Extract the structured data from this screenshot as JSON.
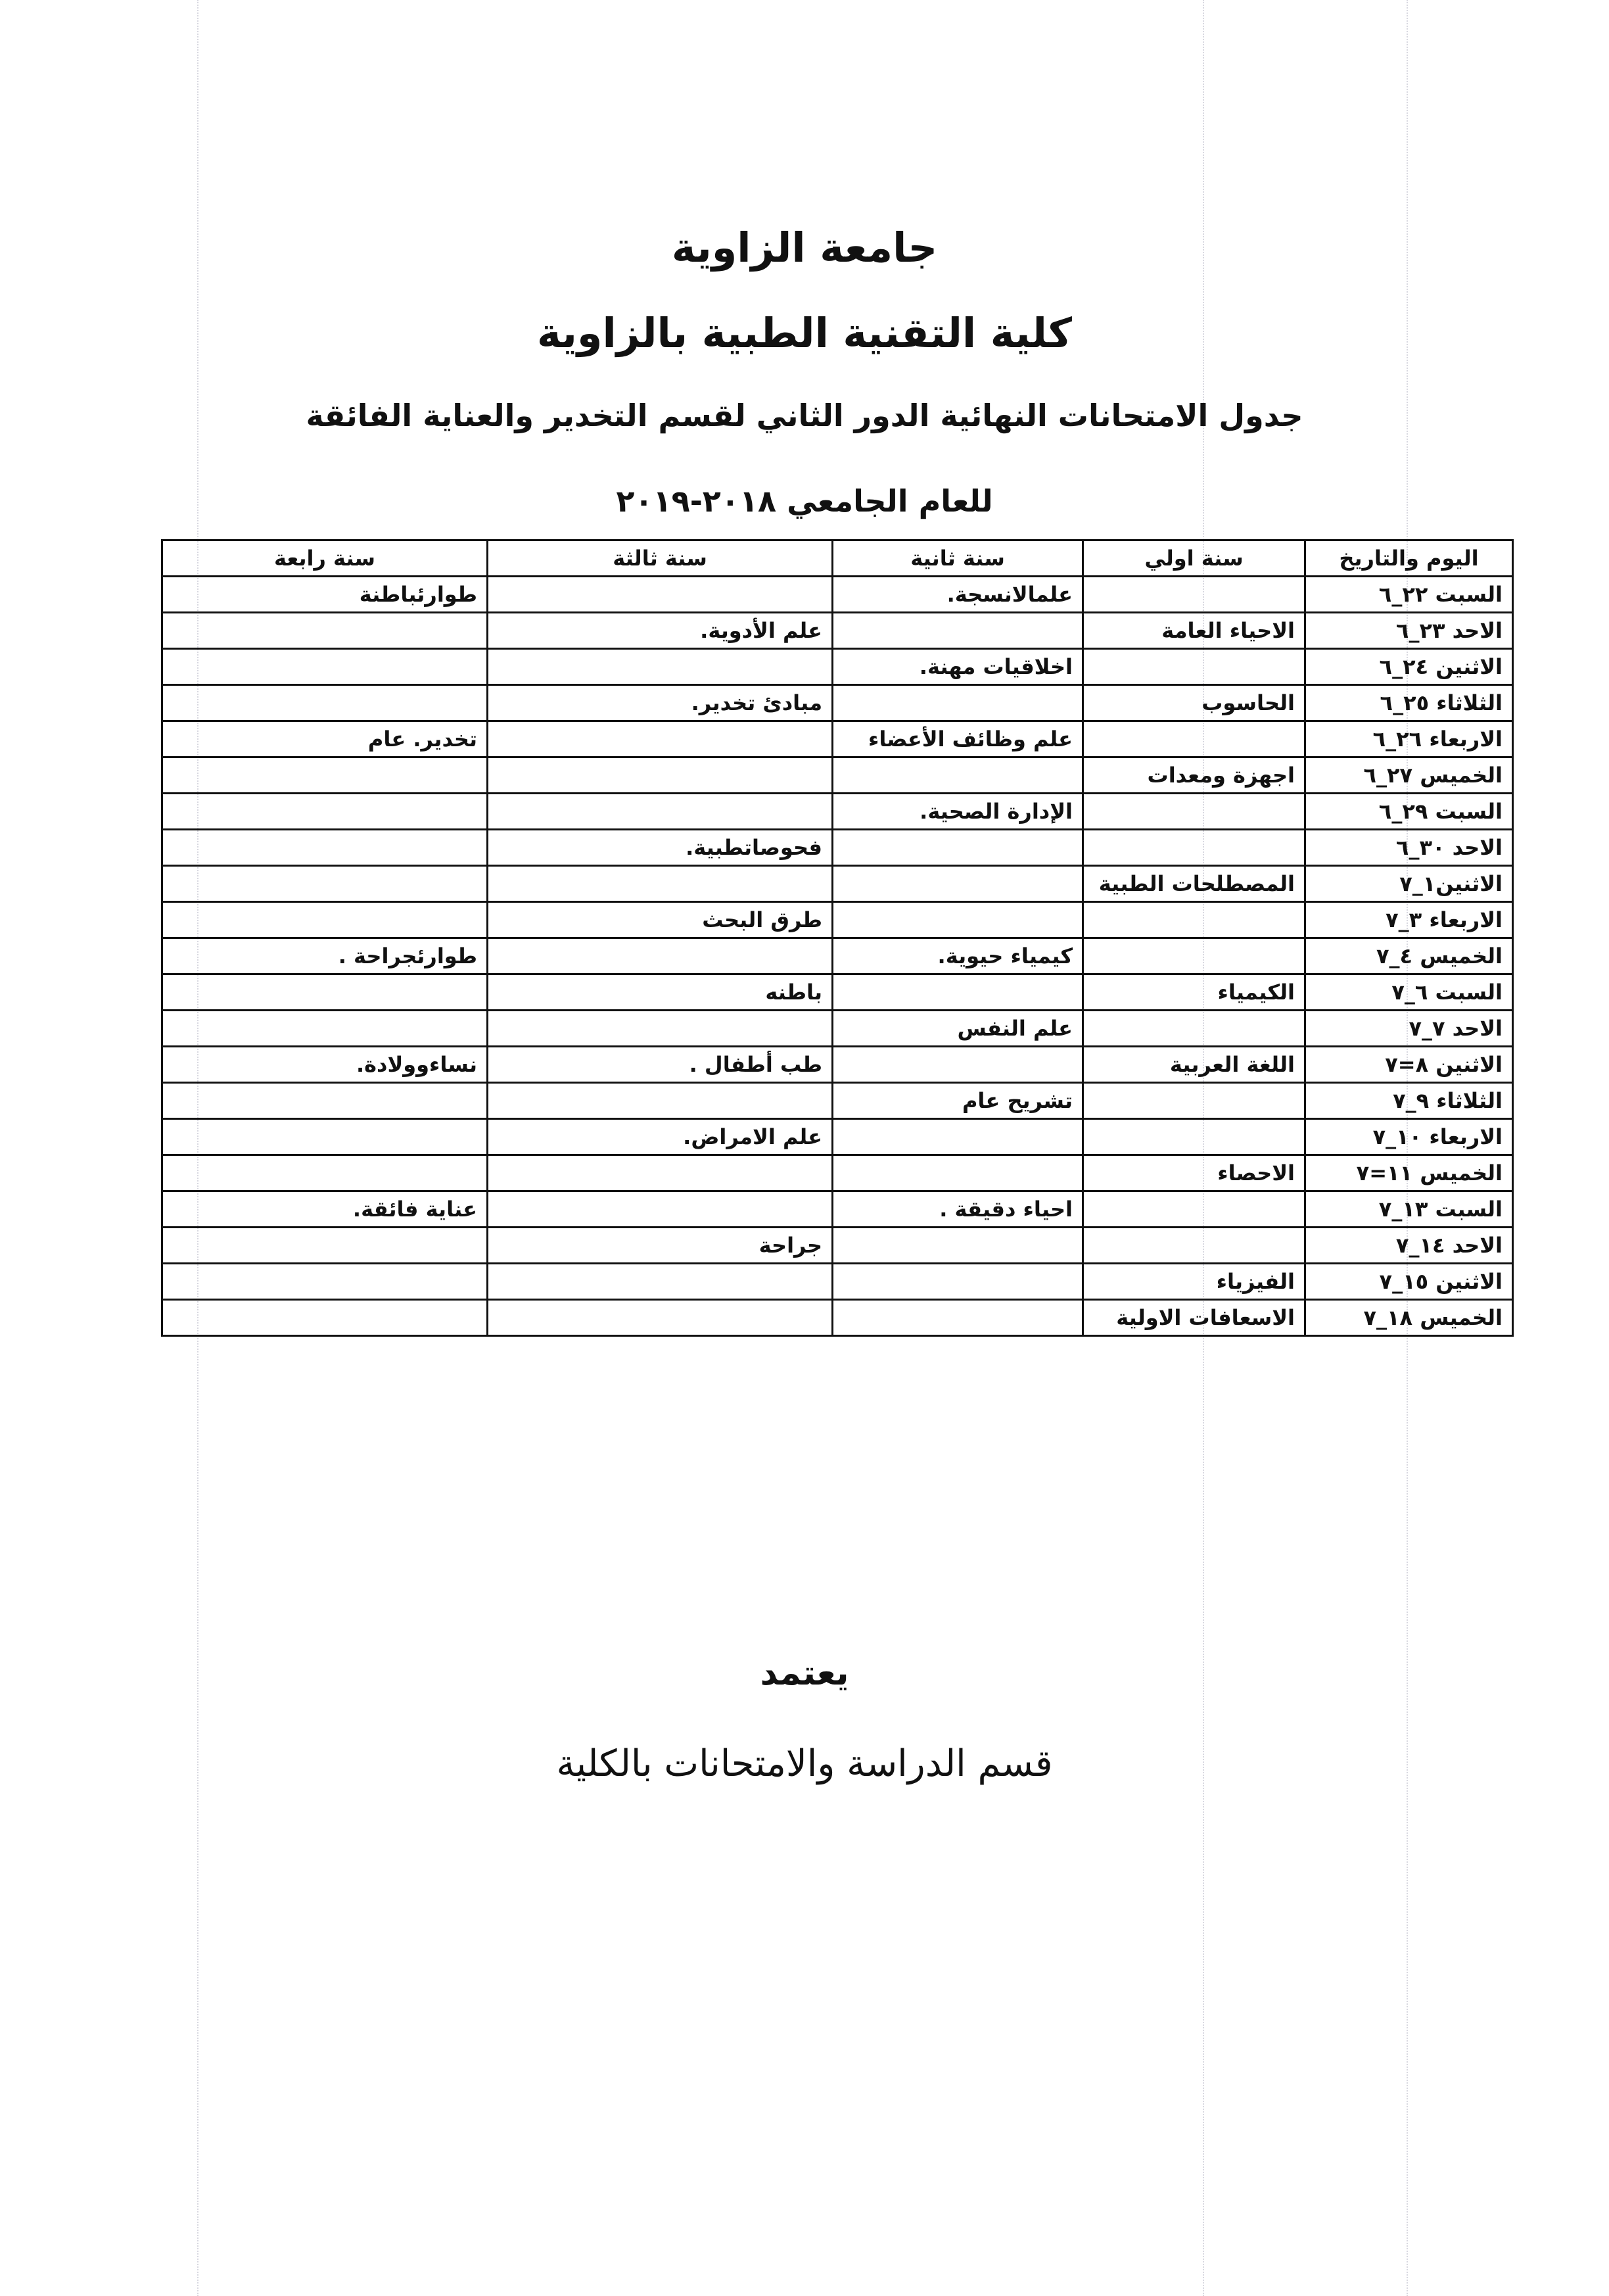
{
  "header": {
    "university": "جامعة الزاوية",
    "college": "كلية التقنية الطبية بالزاوية",
    "schedule_title": "جدول الامتحانات النهائية الدور الثاني لقسم التخدير والعناية الفائقة",
    "academic_year": "للعام الجامعي ٢٠١٨-٢٠١٩"
  },
  "table": {
    "columns": [
      "اليوم والتاريخ",
      "سنة اولي",
      "سنة ثانية",
      "سنة ثالثة",
      "سنة رابعة"
    ],
    "rows": [
      {
        "date": "السبت ٢٢_٦",
        "y1": "",
        "y2": "علمالانسجة.",
        "y3": "",
        "y4": "طوارئباطنة"
      },
      {
        "date": "الاحد ٢٣_٦",
        "y1": "الاحياء العامة",
        "y2": "",
        "y3": "علم الأدوية.",
        "y4": ""
      },
      {
        "date": "الاثنين ٢٤_٦",
        "y1": "",
        "y2": "اخلاقيات مهنة.",
        "y3": "",
        "y4": ""
      },
      {
        "date": "الثلاثاء ٢٥_٦",
        "y1": "الحاسوب",
        "y2": "",
        "y3": "مبادئ تخدير.",
        "y4": ""
      },
      {
        "date": "الاربعاء ٢٦_٦",
        "y1": "",
        "y2": "علم وظائف الأعضاء",
        "y3": "",
        "y4": "تخدير. عام"
      },
      {
        "date": "الخميس ٢٧_٦",
        "y1": "اجهزة ومعدات",
        "y2": "",
        "y3": "",
        "y4": ""
      },
      {
        "date": "السبت ٢٩_٦",
        "y1": "",
        "y2": "الإدارة الصحية.",
        "y3": "",
        "y4": ""
      },
      {
        "date": "الاحد ٣٠_٦",
        "y1": "",
        "y2": "",
        "y3": "فحوصاتطبية.",
        "y4": ""
      },
      {
        "date": "الاثنين١_٧",
        "y1": "المصطلحات الطبية",
        "y2": "",
        "y3": "",
        "y4": ""
      },
      {
        "date": "الاربعاء ٣_٧",
        "y1": "",
        "y2": "",
        "y3": "طرق البحث",
        "y4": ""
      },
      {
        "date": "الخميس ٤_٧",
        "y1": "",
        "y2": "كيمياء حيوية.",
        "y3": "",
        "y4": "طوارئجراحة ."
      },
      {
        "date": "السبت ٦_٧",
        "y1": "الكيمياء",
        "y2": "",
        "y3": "باطنه",
        "y4": ""
      },
      {
        "date": "الاحد ٧_٧",
        "y1": "",
        "y2": "علم النفس",
        "y3": "",
        "y4": ""
      },
      {
        "date": "الاثنين ٨=٧",
        "y1": "اللغة العربية",
        "y2": "",
        "y3": "طب أطفال .",
        "y4": "نساءوولادة."
      },
      {
        "date": "الثلاثاء ٩_٧",
        "y1": "",
        "y2": "تشريح عام",
        "y3": "",
        "y4": ""
      },
      {
        "date": "الاربعاء ١٠_٧",
        "y1": "",
        "y2": "",
        "y3": "علم الامراض.",
        "y4": ""
      },
      {
        "date": "الخميس ١١=٧",
        "y1": "الاحصاء",
        "y2": "",
        "y3": "",
        "y4": ""
      },
      {
        "date": "السبت ١٣_٧",
        "y1": "",
        "y2": "احياء دقيقة .",
        "y3": "",
        "y4": "عناية فائقة."
      },
      {
        "date": "الاحد ١٤_٧",
        "y1": "",
        "y2": "",
        "y3": "جراحة",
        "y4": ""
      },
      {
        "date": "الاثنين ١٥_٧",
        "y1": "الفيزياء",
        "y2": "",
        "y3": "",
        "y4": ""
      },
      {
        "date": "الخميس ١٨_٧",
        "y1": "الاسعافات الاولية",
        "y2": "",
        "y3": "",
        "y4": ""
      }
    ]
  },
  "footer": {
    "approval": "يعتمد",
    "department": "قسم الدراسة والامتحانات بالكلية"
  }
}
